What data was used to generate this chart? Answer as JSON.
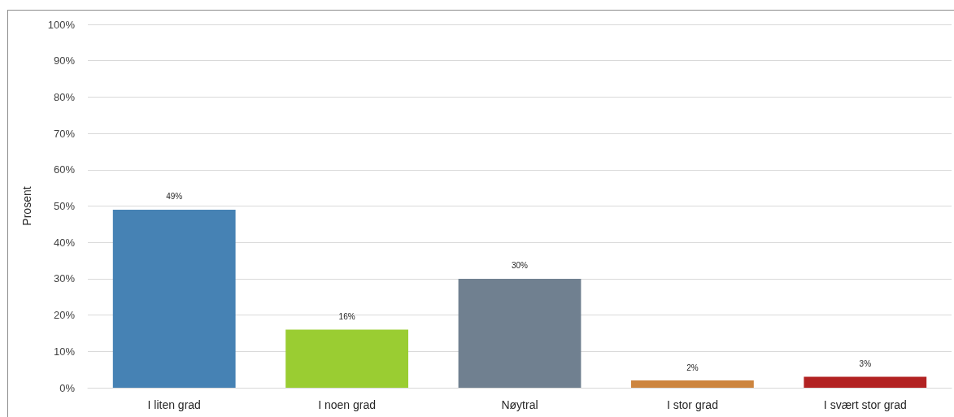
{
  "chart_data": {
    "type": "bar",
    "ylabel": "Prosent",
    "categories": [
      "I liten grad",
      "I noen grad",
      "Nøytral",
      "I stor grad",
      "I svært stor grad"
    ],
    "values": [
      49,
      16,
      30,
      2,
      3
    ],
    "colors": [
      "#4682b4",
      "#9acd32",
      "#708090",
      "#cd853f",
      "#b22222"
    ],
    "value_labels": [
      "49%",
      "16%",
      "30%",
      "2%",
      "3%"
    ],
    "ylim": [
      0,
      100
    ],
    "yticks": [
      {
        "value": 0,
        "label": "0%"
      },
      {
        "value": 10,
        "label": "10%"
      },
      {
        "value": 20,
        "label": "20%"
      },
      {
        "value": 30,
        "label": "30%"
      },
      {
        "value": 40,
        "label": "40%"
      },
      {
        "value": 50,
        "label": "50%"
      },
      {
        "value": 60,
        "label": "60%"
      },
      {
        "value": 70,
        "label": "70%"
      },
      {
        "value": 80,
        "label": "80%"
      },
      {
        "value": 90,
        "label": "90%"
      },
      {
        "value": 100,
        "label": "100%"
      }
    ],
    "grid": "y"
  }
}
